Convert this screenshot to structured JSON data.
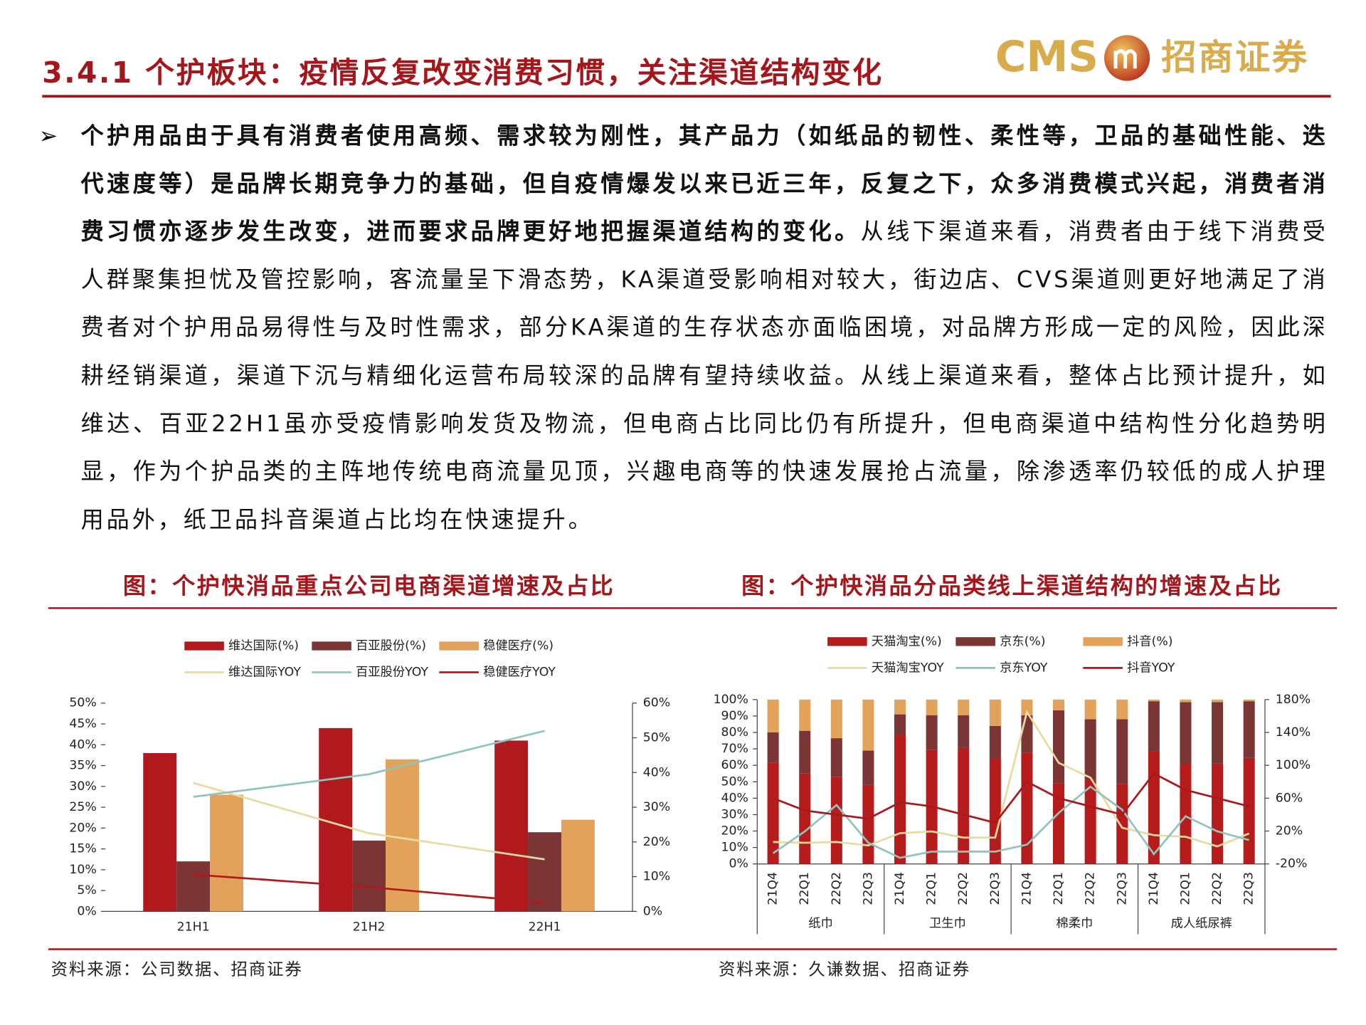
{
  "header": {
    "title": "3.4.1 个护板块：疫情反复改变消费习惯，关注渠道结构变化",
    "logo_en": "CMS",
    "logo_cn": "招商证券"
  },
  "body": {
    "bold": "个护用品由于具有消费者使用高频、需求较为刚性，其产品力（如纸品的韧性、柔性等，卫品的基础性能、迭代速度等）是品牌长期竞争力的基础，但自疫情爆发以来已近三年，反复之下，众多消费模式兴起，消费者消费习惯亦逐步发生改变，进而要求品牌更好地把握渠道结构的变化。",
    "normal": "从线下渠道来看，消费者由于线下消费受人群聚集担忧及管控影响，客流量呈下滑态势，KA渠道受影响相对较大，街边店、CVS渠道则更好地满足了消费者对个护用品易得性与及时性需求，部分KA渠道的生存状态亦面临困境，对品牌方形成一定的风险，因此深耕经销渠道，渠道下沉与精细化运营布局较深的品牌有望持续收益。从线上渠道来看，整体占比预计提升，如维达、百亚22H1虽亦受疫情影响发货及物流，但电商占比同比仍有所提升，但电商渠道中结构性分化趋势明显，作为个护品类的主阵地传统电商流量见顶，兴趣电商等的快速发展抢占流量，除渗透率仍较低的成人护理用品外，纸卫品抖音渠道占比均在快速提升。"
  },
  "chart_data": [
    {
      "type": "bar",
      "title": "图：个护快消品重点公司电商渠道增速及占比",
      "source": "资料来源：公司数据、招商证券",
      "categories": [
        "21H1",
        "21H2",
        "22H1"
      ],
      "series": [
        {
          "name": "维达国际(%)",
          "type": "bar",
          "color": "#b01a1e",
          "values": [
            38,
            44,
            41
          ]
        },
        {
          "name": "百亚股份(%)",
          "type": "bar",
          "color": "#7b3535",
          "values": [
            12,
            17,
            19
          ]
        },
        {
          "name": "稳健医疗(%)",
          "type": "bar",
          "color": "#e3a25a",
          "values": [
            28,
            36.5,
            22
          ]
        },
        {
          "name": "维达国际YOY",
          "type": "line",
          "axis": "y2",
          "color": "#e6dba0",
          "values": [
            37,
            22.5,
            15
          ]
        },
        {
          "name": "百亚股份YOY",
          "type": "line",
          "axis": "y2",
          "color": "#8fc3bd",
          "values": [
            33,
            39.5,
            52
          ]
        },
        {
          "name": "稳健医疗YOY",
          "type": "line",
          "axis": "y2",
          "color": "#b01a1e",
          "values": [
            10.6,
            7,
            2.5
          ]
        }
      ],
      "ylim": [
        0,
        50
      ],
      "yticks": [
        {
          "value": 0,
          "label": "0%"
        },
        {
          "value": 5,
          "label": "5%"
        },
        {
          "value": 10,
          "label": "10%"
        },
        {
          "value": 15,
          "label": "15%"
        },
        {
          "value": 20,
          "label": "20%"
        },
        {
          "value": 25,
          "label": "25%"
        },
        {
          "value": 30,
          "label": "30%"
        },
        {
          "value": 35,
          "label": "35%"
        },
        {
          "value": 40,
          "label": "40%"
        },
        {
          "value": 45,
          "label": "45%"
        },
        {
          "value": 50,
          "label": "50%"
        }
      ],
      "y2lim": [
        0,
        60
      ],
      "y2ticks": [
        {
          "value": 0,
          "label": "0%"
        },
        {
          "value": 10,
          "label": "10%"
        },
        {
          "value": 20,
          "label": "20%"
        },
        {
          "value": 30,
          "label": "30%"
        },
        {
          "value": 40,
          "label": "40%"
        },
        {
          "value": 50,
          "label": "50%"
        },
        {
          "value": 60,
          "label": "60%"
        }
      ]
    },
    {
      "type": "stacked_bar",
      "title": "图：个护快消品分品类线上渠道结构的增速及占比",
      "source": "资料来源：久谦数据、招商证券",
      "categories": [
        "21Q4",
        "22Q1",
        "22Q2",
        "22Q3",
        "21Q4",
        "22Q1",
        "22Q2",
        "22Q3",
        "21Q4",
        "22Q1",
        "22Q2",
        "22Q3",
        "21Q4",
        "22Q1",
        "22Q2",
        "22Q3"
      ],
      "groups": [
        "纸巾",
        "卫生巾",
        "棉柔巾",
        "成人纸尿裤"
      ],
      "series": [
        {
          "name": "天猫淘宝(%)",
          "type": "bar",
          "color": "#b71c1c",
          "values": [
            61.5,
            55,
            53,
            48,
            78.5,
            69.5,
            70.5,
            64,
            67.5,
            49,
            51,
            48.5,
            68.5,
            60.5,
            61,
            64.5
          ]
        },
        {
          "name": "京东(%)",
          "type": "bar",
          "color": "#7b3535",
          "values": [
            18.5,
            26,
            23.5,
            21,
            12.5,
            21,
            20,
            20,
            23,
            44.5,
            37,
            39.5,
            30.5,
            38,
            37.5,
            34.5
          ]
        },
        {
          "name": "抖音(%)",
          "type": "bar",
          "color": "#e3a25a",
          "values": [
            20,
            19,
            23.5,
            31,
            9,
            9.5,
            9.5,
            16,
            9.5,
            6.5,
            12,
            12,
            1,
            1.5,
            1.5,
            1
          ]
        },
        {
          "name": "天猫淘宝YOY",
          "type": "line",
          "axis": "y2",
          "color": "#e6dba0",
          "values": [
            6.7,
            5.7,
            6.7,
            2.5,
            17.4,
            19.6,
            12,
            12,
            165,
            103,
            85,
            24,
            15,
            13,
            1.4,
            17
          ]
        },
        {
          "name": "京东YOY",
          "type": "line",
          "axis": "y2",
          "color": "#8fc3bd",
          "values": [
            -7,
            19.6,
            51.7,
            5.7,
            -12.5,
            -5,
            -5,
            -5,
            3.5,
            42,
            74,
            46,
            -8,
            38,
            19.6,
            9
          ]
        },
        {
          "name": "抖音YOY",
          "type": "line",
          "axis": "y2",
          "color": "#a51a1a",
          "values": [
            60,
            45,
            40,
            35,
            55,
            50,
            40,
            30,
            80,
            60,
            50,
            40,
            90,
            70,
            60,
            50
          ]
        }
      ],
      "ylim": [
        0,
        100
      ],
      "yticks": [
        {
          "value": 0,
          "label": "0%"
        },
        {
          "value": 10,
          "label": "10%"
        },
        {
          "value": 20,
          "label": "20%"
        },
        {
          "value": 30,
          "label": "30%"
        },
        {
          "value": 40,
          "label": "40%"
        },
        {
          "value": 50,
          "label": "50%"
        },
        {
          "value": 60,
          "label": "60%"
        },
        {
          "value": 70,
          "label": "70%"
        },
        {
          "value": 80,
          "label": "80%"
        },
        {
          "value": 90,
          "label": "90%"
        },
        {
          "value": 100,
          "label": "100%"
        }
      ],
      "y2lim": [
        -20,
        180
      ],
      "y2ticks": [
        {
          "value": -20,
          "label": "-20%"
        },
        {
          "value": 20,
          "label": "20%"
        },
        {
          "value": 60,
          "label": "60%"
        },
        {
          "value": 100,
          "label": "100%"
        },
        {
          "value": 140,
          "label": "140%"
        },
        {
          "value": 180,
          "label": "180%"
        }
      ]
    }
  ]
}
